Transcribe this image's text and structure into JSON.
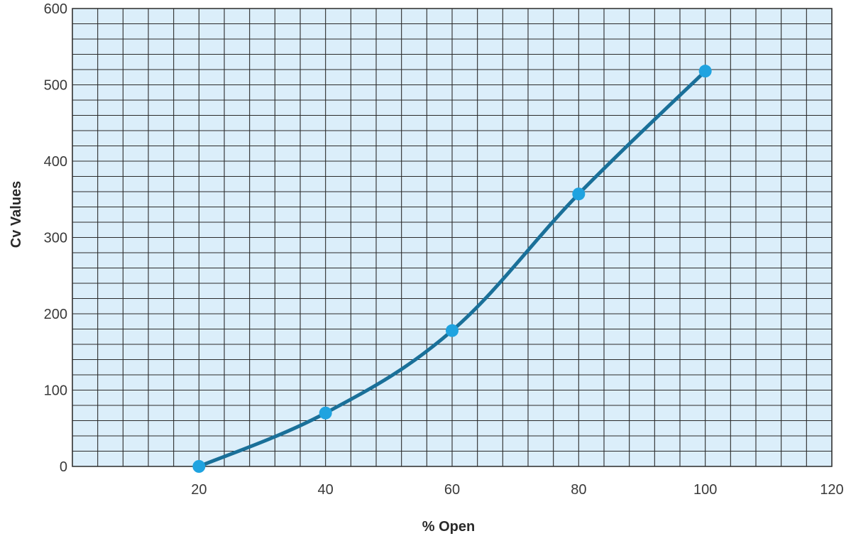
{
  "chart_data": {
    "type": "line",
    "title": "",
    "xlabel": "% Open",
    "ylabel": "Cv Values",
    "xlim": [
      0,
      120
    ],
    "ylim": [
      0,
      600
    ],
    "x_ticks": [
      20,
      40,
      60,
      80,
      100,
      120
    ],
    "y_ticks": [
      0,
      100,
      200,
      300,
      400,
      500,
      600
    ],
    "grid": true,
    "minor_grid": {
      "x_step": 4,
      "y_step": 20
    },
    "series": [
      {
        "x": [
          20,
          40,
          60,
          80,
          100
        ],
        "y": [
          0,
          70,
          178,
          357,
          518
        ]
      }
    ],
    "colors": {
      "plot_background": "#dbeefa",
      "grid": "#2b2b2b",
      "line": "#1a7099",
      "marker": "#1fa3e0"
    }
  }
}
